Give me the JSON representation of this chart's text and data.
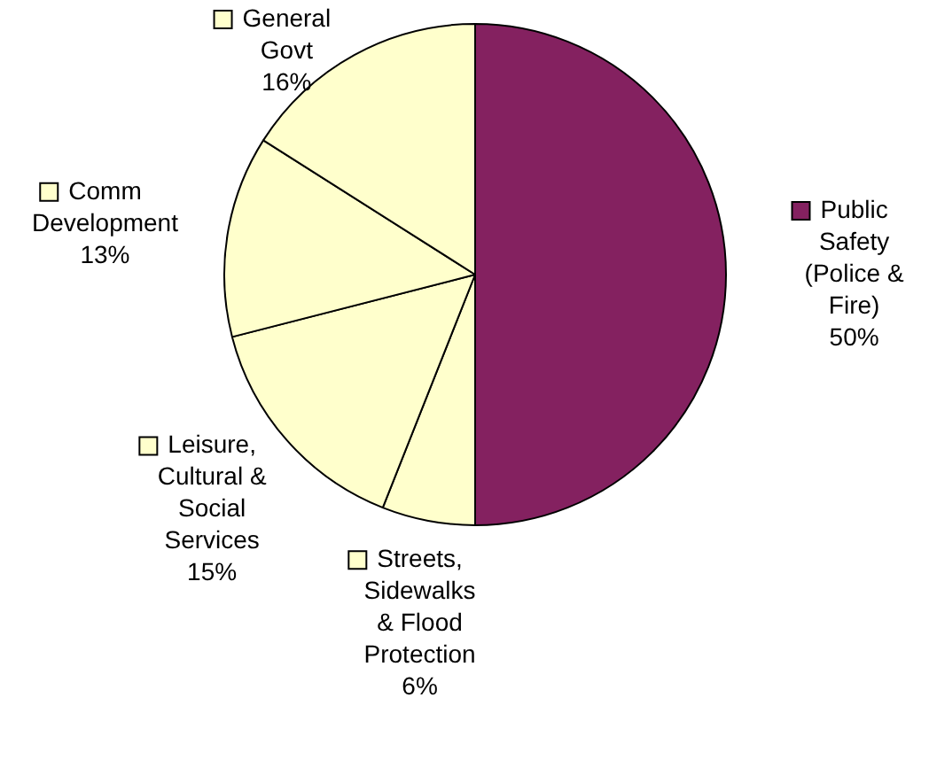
{
  "chart_data": {
    "type": "pie",
    "categories": [
      "Public Safety (Police & Fire)",
      "Streets, Sidewalks & Flood Protection",
      "Leisure, Cultural & Social Services",
      "Comm Development",
      "General Govt"
    ],
    "values": [
      50,
      6,
      15,
      13,
      16
    ],
    "value_labels": [
      "50%",
      "6%",
      "15%",
      "13%",
      "16%"
    ],
    "colors": [
      "#842160",
      "#ffffcc",
      "#ffffcc",
      "#ffffcc",
      "#ffffcc"
    ],
    "legend": true
  }
}
